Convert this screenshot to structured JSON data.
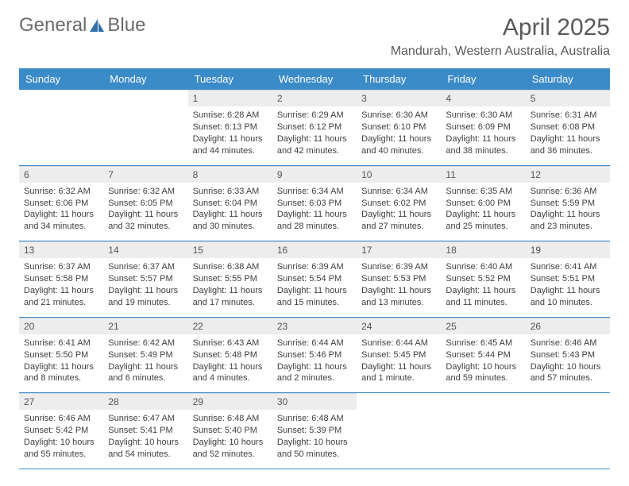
{
  "brand": {
    "word1": "General",
    "word2": "Blue"
  },
  "title": "April 2025",
  "location": "Mandurah, Western Australia, Australia",
  "colors": {
    "header_bg": "#3b8bc8",
    "header_text": "#ffffff",
    "daynum_bg": "#ededed",
    "divider": "#3b8bc8",
    "body_text": "#404040",
    "title_text": "#5a5a5a",
    "logo_gray": "#6a6a6a",
    "logo_blue": "#2f6ea8"
  },
  "day_names": [
    "Sunday",
    "Monday",
    "Tuesday",
    "Wednesday",
    "Thursday",
    "Friday",
    "Saturday"
  ],
  "weeks": [
    [
      null,
      null,
      {
        "n": "1",
        "sr": "Sunrise: 6:28 AM",
        "ss": "Sunset: 6:13 PM",
        "dl": "Daylight: 11 hours and 44 minutes."
      },
      {
        "n": "2",
        "sr": "Sunrise: 6:29 AM",
        "ss": "Sunset: 6:12 PM",
        "dl": "Daylight: 11 hours and 42 minutes."
      },
      {
        "n": "3",
        "sr": "Sunrise: 6:30 AM",
        "ss": "Sunset: 6:10 PM",
        "dl": "Daylight: 11 hours and 40 minutes."
      },
      {
        "n": "4",
        "sr": "Sunrise: 6:30 AM",
        "ss": "Sunset: 6:09 PM",
        "dl": "Daylight: 11 hours and 38 minutes."
      },
      {
        "n": "5",
        "sr": "Sunrise: 6:31 AM",
        "ss": "Sunset: 6:08 PM",
        "dl": "Daylight: 11 hours and 36 minutes."
      }
    ],
    [
      {
        "n": "6",
        "sr": "Sunrise: 6:32 AM",
        "ss": "Sunset: 6:06 PM",
        "dl": "Daylight: 11 hours and 34 minutes."
      },
      {
        "n": "7",
        "sr": "Sunrise: 6:32 AM",
        "ss": "Sunset: 6:05 PM",
        "dl": "Daylight: 11 hours and 32 minutes."
      },
      {
        "n": "8",
        "sr": "Sunrise: 6:33 AM",
        "ss": "Sunset: 6:04 PM",
        "dl": "Daylight: 11 hours and 30 minutes."
      },
      {
        "n": "9",
        "sr": "Sunrise: 6:34 AM",
        "ss": "Sunset: 6:03 PM",
        "dl": "Daylight: 11 hours and 28 minutes."
      },
      {
        "n": "10",
        "sr": "Sunrise: 6:34 AM",
        "ss": "Sunset: 6:02 PM",
        "dl": "Daylight: 11 hours and 27 minutes."
      },
      {
        "n": "11",
        "sr": "Sunrise: 6:35 AM",
        "ss": "Sunset: 6:00 PM",
        "dl": "Daylight: 11 hours and 25 minutes."
      },
      {
        "n": "12",
        "sr": "Sunrise: 6:36 AM",
        "ss": "Sunset: 5:59 PM",
        "dl": "Daylight: 11 hours and 23 minutes."
      }
    ],
    [
      {
        "n": "13",
        "sr": "Sunrise: 6:37 AM",
        "ss": "Sunset: 5:58 PM",
        "dl": "Daylight: 11 hours and 21 minutes."
      },
      {
        "n": "14",
        "sr": "Sunrise: 6:37 AM",
        "ss": "Sunset: 5:57 PM",
        "dl": "Daylight: 11 hours and 19 minutes."
      },
      {
        "n": "15",
        "sr": "Sunrise: 6:38 AM",
        "ss": "Sunset: 5:55 PM",
        "dl": "Daylight: 11 hours and 17 minutes."
      },
      {
        "n": "16",
        "sr": "Sunrise: 6:39 AM",
        "ss": "Sunset: 5:54 PM",
        "dl": "Daylight: 11 hours and 15 minutes."
      },
      {
        "n": "17",
        "sr": "Sunrise: 6:39 AM",
        "ss": "Sunset: 5:53 PM",
        "dl": "Daylight: 11 hours and 13 minutes."
      },
      {
        "n": "18",
        "sr": "Sunrise: 6:40 AM",
        "ss": "Sunset: 5:52 PM",
        "dl": "Daylight: 11 hours and 11 minutes."
      },
      {
        "n": "19",
        "sr": "Sunrise: 6:41 AM",
        "ss": "Sunset: 5:51 PM",
        "dl": "Daylight: 11 hours and 10 minutes."
      }
    ],
    [
      {
        "n": "20",
        "sr": "Sunrise: 6:41 AM",
        "ss": "Sunset: 5:50 PM",
        "dl": "Daylight: 11 hours and 8 minutes."
      },
      {
        "n": "21",
        "sr": "Sunrise: 6:42 AM",
        "ss": "Sunset: 5:49 PM",
        "dl": "Daylight: 11 hours and 6 minutes."
      },
      {
        "n": "22",
        "sr": "Sunrise: 6:43 AM",
        "ss": "Sunset: 5:48 PM",
        "dl": "Daylight: 11 hours and 4 minutes."
      },
      {
        "n": "23",
        "sr": "Sunrise: 6:44 AM",
        "ss": "Sunset: 5:46 PM",
        "dl": "Daylight: 11 hours and 2 minutes."
      },
      {
        "n": "24",
        "sr": "Sunrise: 6:44 AM",
        "ss": "Sunset: 5:45 PM",
        "dl": "Daylight: 11 hours and 1 minute."
      },
      {
        "n": "25",
        "sr": "Sunrise: 6:45 AM",
        "ss": "Sunset: 5:44 PM",
        "dl": "Daylight: 10 hours and 59 minutes."
      },
      {
        "n": "26",
        "sr": "Sunrise: 6:46 AM",
        "ss": "Sunset: 5:43 PM",
        "dl": "Daylight: 10 hours and 57 minutes."
      }
    ],
    [
      {
        "n": "27",
        "sr": "Sunrise: 6:46 AM",
        "ss": "Sunset: 5:42 PM",
        "dl": "Daylight: 10 hours and 55 minutes."
      },
      {
        "n": "28",
        "sr": "Sunrise: 6:47 AM",
        "ss": "Sunset: 5:41 PM",
        "dl": "Daylight: 10 hours and 54 minutes."
      },
      {
        "n": "29",
        "sr": "Sunrise: 6:48 AM",
        "ss": "Sunset: 5:40 PM",
        "dl": "Daylight: 10 hours and 52 minutes."
      },
      {
        "n": "30",
        "sr": "Sunrise: 6:48 AM",
        "ss": "Sunset: 5:39 PM",
        "dl": "Daylight: 10 hours and 50 minutes."
      },
      null,
      null,
      null
    ]
  ]
}
